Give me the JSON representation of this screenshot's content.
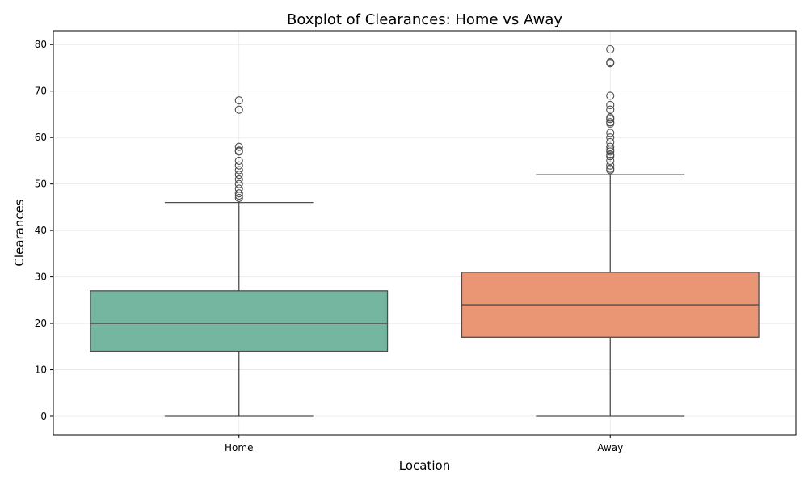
{
  "chart_data": {
    "type": "box",
    "title": "Boxplot of Clearances: Home vs Away",
    "xlabel": "Location",
    "ylabel": "Clearances",
    "ylim": [
      -4,
      83
    ],
    "yticks": [
      0,
      10,
      20,
      30,
      40,
      50,
      60,
      70,
      80
    ],
    "grid": true,
    "categories": [
      "Home",
      "Away"
    ],
    "colors": [
      "#74b6a0",
      "#ea9674"
    ],
    "boxes": [
      {
        "category": "Home",
        "whisker_low": 0,
        "q1": 14,
        "median": 20,
        "q3": 27,
        "whisker_high": 46,
        "outliers": [
          47,
          47.5,
          48,
          49,
          50,
          51,
          52,
          53,
          54,
          55,
          57,
          57.2,
          58,
          66,
          68
        ]
      },
      {
        "category": "Away",
        "whisker_low": 0,
        "q1": 17,
        "median": 24,
        "q3": 31,
        "whisker_high": 52,
        "outliers": [
          53,
          53.3,
          54,
          55,
          56,
          56.3,
          57,
          57.4,
          58,
          59,
          60,
          61,
          63,
          63.3,
          64,
          64.3,
          66,
          67,
          69,
          76,
          76.2,
          79
        ]
      }
    ]
  }
}
